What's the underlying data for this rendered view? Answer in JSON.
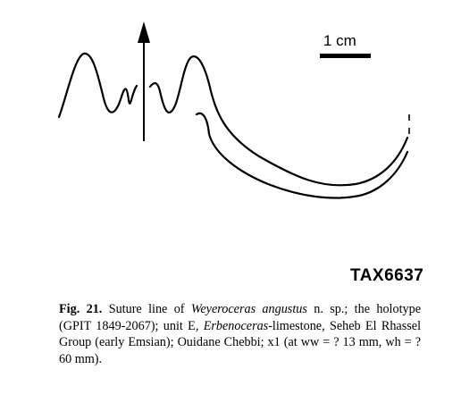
{
  "scale_bar": {
    "label": "1 cm"
  },
  "specimen_id": "TAX6637",
  "caption": {
    "fig_label": "Fig. 21.",
    "text_1": " Suture line of ",
    "species": "Weyeroceras angustus",
    "text_2": " n. sp.; the holotype (GPIT 1849-2067); unit E, ",
    "genus_ref": "Erbenoceras",
    "text_3": "-limestone, Seheb El Rhassel Group (early Emsian); Ouidane Chebbi; x1 (at ww = ? 13 mm, wh = ? 60 mm)."
  },
  "colors": {
    "ink": "#000000",
    "background": "#ffffff"
  }
}
